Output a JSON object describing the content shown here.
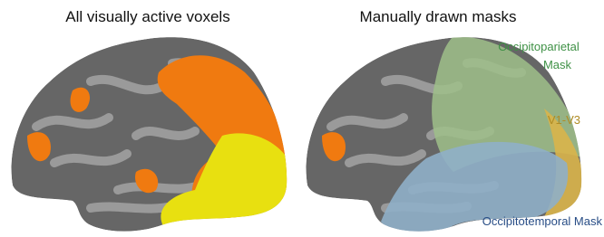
{
  "panels": [
    {
      "title": "All visually active voxels"
    },
    {
      "title": "Manually drawn masks",
      "labels": [
        {
          "lines": [
            "Occipitoparietal",
            "Mask"
          ]
        },
        {
          "lines": [
            "V1-V3"
          ]
        },
        {
          "lines": [
            "Occipitotemporal Mask"
          ]
        }
      ]
    }
  ]
}
